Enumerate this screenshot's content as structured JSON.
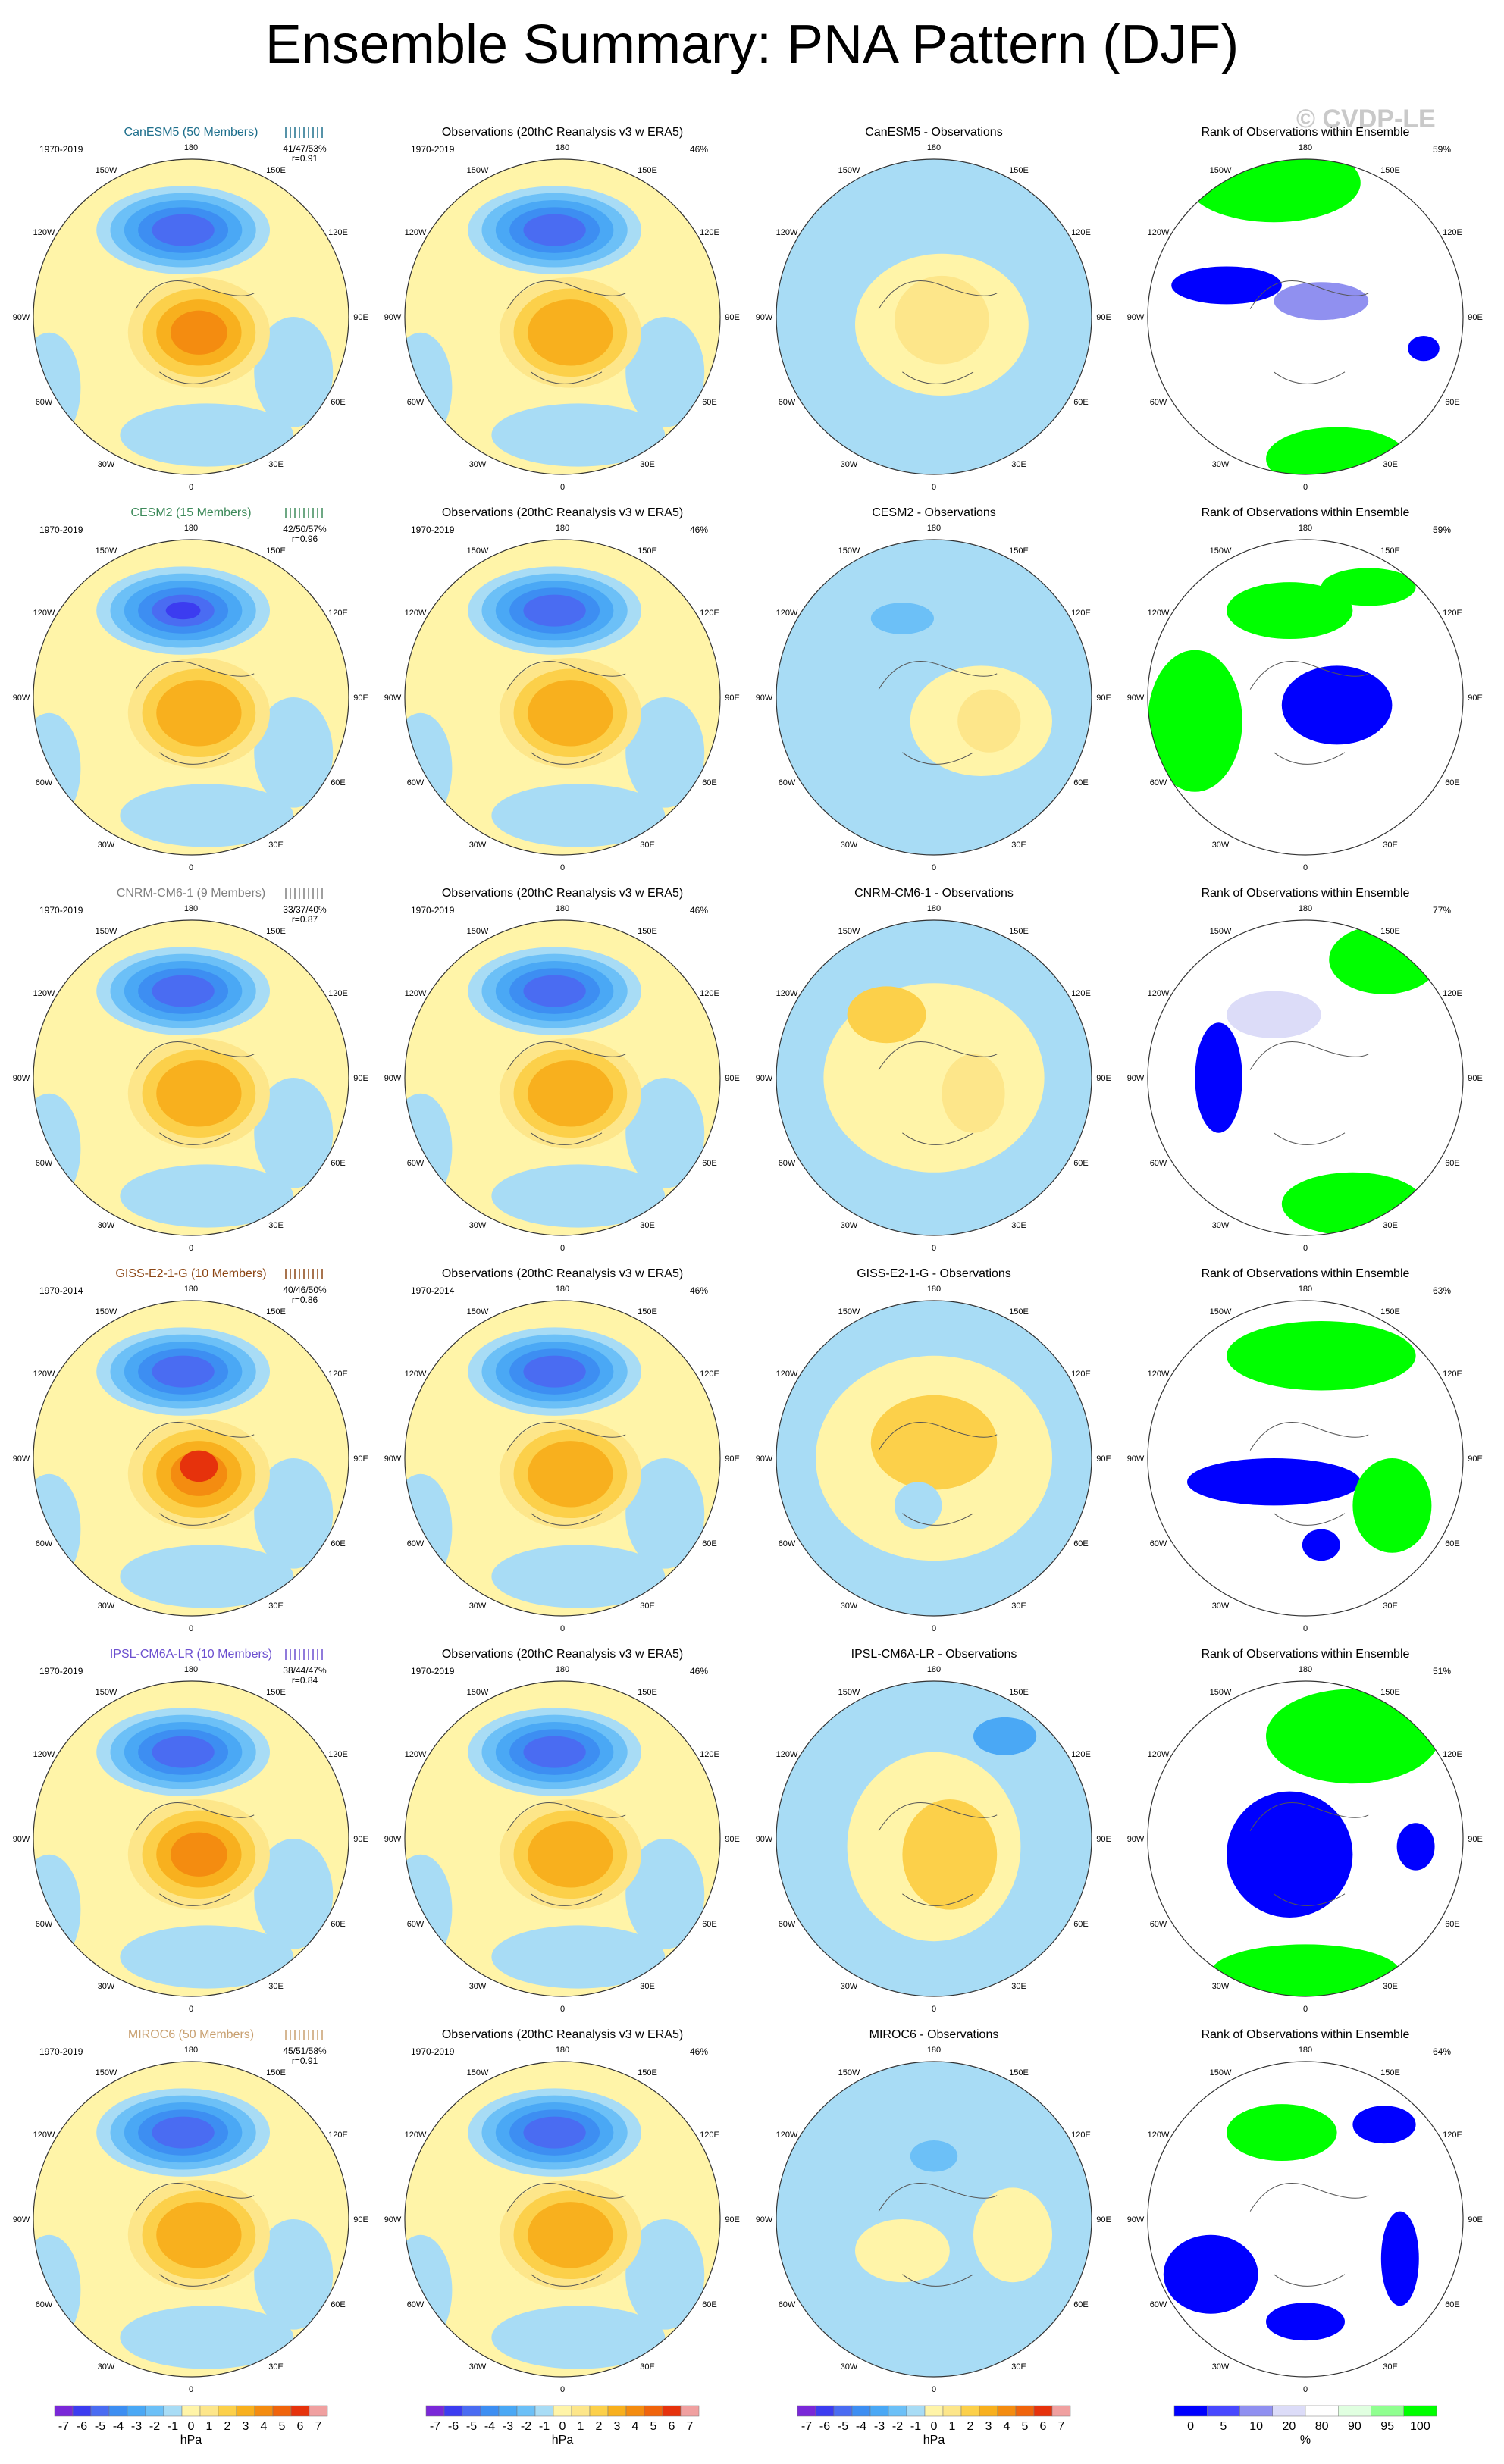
{
  "title": "Ensemble Summary: PNA Pattern (DJF)",
  "watermark": "© CVDP-LE",
  "column_titles": {
    "observations": "Observations (20thC Reanalysis v3 w ERA5)",
    "rank": "Rank of Observations within Ensemble"
  },
  "obs_pct": "46%",
  "lon_labels": [
    "180",
    "150E",
    "120E",
    "90E",
    "60E",
    "30E",
    "0",
    "30W",
    "60W",
    "90W",
    "120W",
    "150W"
  ],
  "colors": {
    "model_colors": [
      "#1e6f8c",
      "#3d8a5a",
      "#7f7f7f",
      "#8b4513",
      "#6b4fcf",
      "#c8a070"
    ]
  },
  "rows": [
    {
      "model": "CanESM5 (50 Members)",
      "diff_title": "CanESM5 - Observations",
      "years": "1970-2019",
      "stats": "41/47/53%",
      "r": "r=0.91",
      "rank_pct": "59%"
    },
    {
      "model": "CESM2 (15 Members)",
      "diff_title": "CESM2 - Observations",
      "years": "1970-2019",
      "stats": "42/50/57%",
      "r": "r=0.96",
      "rank_pct": "59%"
    },
    {
      "model": "CNRM-CM6-1 (9 Members)",
      "diff_title": "CNRM-CM6-1 - Observations",
      "years": "1970-2019",
      "stats": "33/37/40%",
      "r": "r=0.87",
      "rank_pct": "77%"
    },
    {
      "model": "GISS-E2-1-G (10 Members)",
      "diff_title": "GISS-E2-1-G - Observations",
      "years": "1970-2014",
      "stats": "40/46/50%",
      "r": "r=0.86",
      "rank_pct": "63%"
    },
    {
      "model": "IPSL-CM6A-LR (10 Members)",
      "diff_title": "IPSL-CM6A-LR - Observations",
      "years": "1970-2019",
      "stats": "38/44/47%",
      "r": "r=0.84",
      "rank_pct": "51%"
    },
    {
      "model": "MIROC6 (50 Members)",
      "diff_title": "MIROC6 - Observations",
      "years": "1970-2019",
      "stats": "45/51/58%",
      "r": "r=0.91",
      "rank_pct": "64%"
    }
  ],
  "colorbar_hpa": {
    "labels": [
      "-7",
      "-6",
      "-5",
      "-4",
      "-3",
      "-2",
      "-1",
      "0",
      "1",
      "2",
      "3",
      "4",
      "5",
      "6",
      "7"
    ],
    "colors": [
      "#7a28d8",
      "#3c3cf0",
      "#4a6cf2",
      "#3d8ef2",
      "#4aa8f5",
      "#6cc0f7",
      "#a8dcf5",
      "#fff4a8",
      "#fde68a",
      "#fcd04a",
      "#f8b01e",
      "#f48c10",
      "#f0640c",
      "#e6320c",
      "#f0a0a0"
    ],
    "unit": "hPa"
  },
  "colorbar_rank": {
    "labels": [
      "0",
      "5",
      "10",
      "20",
      "80",
      "90",
      "95",
      "100"
    ],
    "colors": [
      "#0000ff",
      "#4848ff",
      "#9090f0",
      "#dcdcf8",
      "#ffffff",
      "#e0ffe0",
      "#90ff90",
      "#00ff00"
    ],
    "unit": "%"
  },
  "chart_data": {
    "type": "heatmap",
    "title": "Ensemble Summary: PNA Pattern (DJF)",
    "panels_per_row": [
      "ensemble mean",
      "observations",
      "ensemble minus observations",
      "rank of observations"
    ],
    "models": [
      "CanESM5",
      "CESM2",
      "CNRM-CM6-1",
      "GISS-E2-1-G",
      "IPSL-CM6A-LR",
      "MIROC6"
    ],
    "ensemble_pattern_correlation": [
      0.91,
      0.96,
      0.87,
      0.86,
      0.84,
      0.91
    ],
    "pct_variance_explained_min_mean_max": [
      [
        41,
        47,
        53
      ],
      [
        42,
        50,
        57
      ],
      [
        33,
        37,
        40
      ],
      [
        40,
        46,
        50
      ],
      [
        38,
        44,
        47
      ],
      [
        45,
        51,
        58
      ]
    ],
    "obs_pct_variance_explained": 46,
    "rank_pct_area_10_90": [
      59,
      59,
      77,
      63,
      51,
      64
    ],
    "colorbar_range_hPa": [
      -7,
      7
    ],
    "units": "hPa"
  }
}
